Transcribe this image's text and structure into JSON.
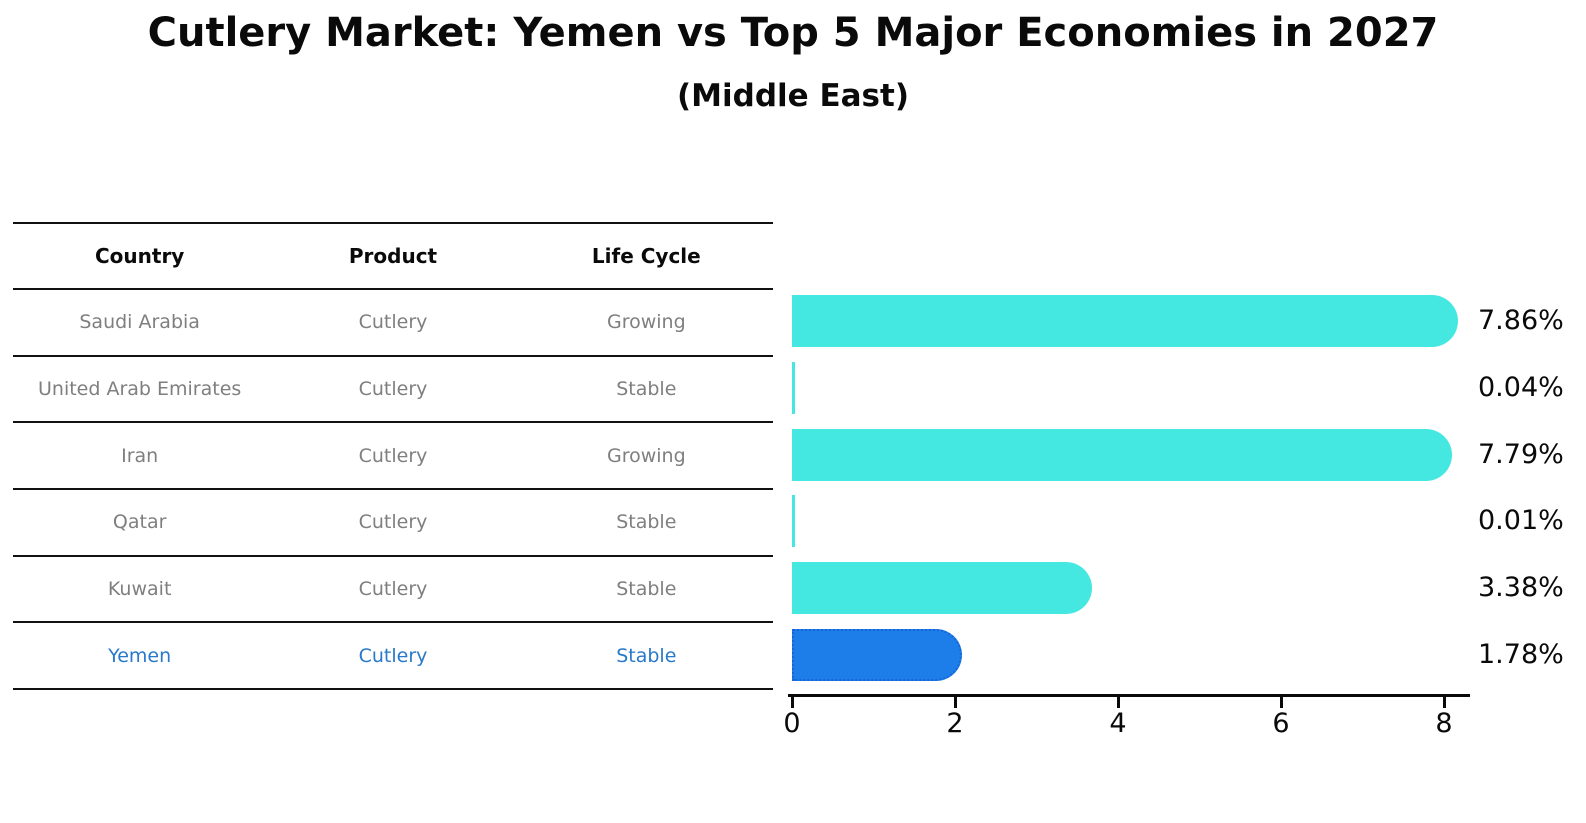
{
  "title": "Cutlery Market: Yemen vs Top 5 Major Economies in 2027",
  "subtitle": "(Middle East)",
  "table": {
    "headers": [
      "Country",
      "Product",
      "Life Cycle"
    ],
    "rows": [
      {
        "country": "Saudi Arabia",
        "product": "Cutlery",
        "life_cycle": "Growing",
        "highlight": false
      },
      {
        "country": "United Arab Emirates",
        "product": "Cutlery",
        "life_cycle": "Stable",
        "highlight": false
      },
      {
        "country": "Iran",
        "product": "Cutlery",
        "life_cycle": "Growing",
        "highlight": false
      },
      {
        "country": "Qatar",
        "product": "Cutlery",
        "life_cycle": "Stable",
        "highlight": false
      },
      {
        "country": "Kuwait",
        "product": "Cutlery",
        "life_cycle": "Stable",
        "highlight": false
      },
      {
        "country": "Yemen",
        "product": "Cutlery",
        "life_cycle": "Stable",
        "highlight": true
      }
    ]
  },
  "chart_data": {
    "type": "bar",
    "orientation": "horizontal",
    "categories": [
      "Saudi Arabia",
      "United Arab Emirates",
      "Iran",
      "Qatar",
      "Kuwait",
      "Yemen"
    ],
    "values": [
      7.86,
      0.04,
      7.79,
      0.01,
      3.38,
      1.78
    ],
    "value_labels": [
      "7.86%",
      "0.04%",
      "7.79%",
      "0.01%",
      "3.38%",
      "1.78%"
    ],
    "title": "Cutlery Market: Yemen vs Top 5 Major Economies in 2027",
    "subtitle": "(Middle East)",
    "xlabel": "",
    "ylabel": "",
    "xlim": [
      0,
      8
    ],
    "x_ticks": [
      0,
      2,
      4,
      6,
      8
    ],
    "grid": false,
    "legend": false,
    "highlight_index": 5
  },
  "colors": {
    "bar_color": "#45E8E1",
    "highlight_bar_color": "#1E7EE9",
    "highlight_border_color": "#1565D8",
    "highlight_text_color": "#2879C9",
    "table_text_color": "#7f7f7f",
    "axis_color": "#0a0a0a"
  }
}
